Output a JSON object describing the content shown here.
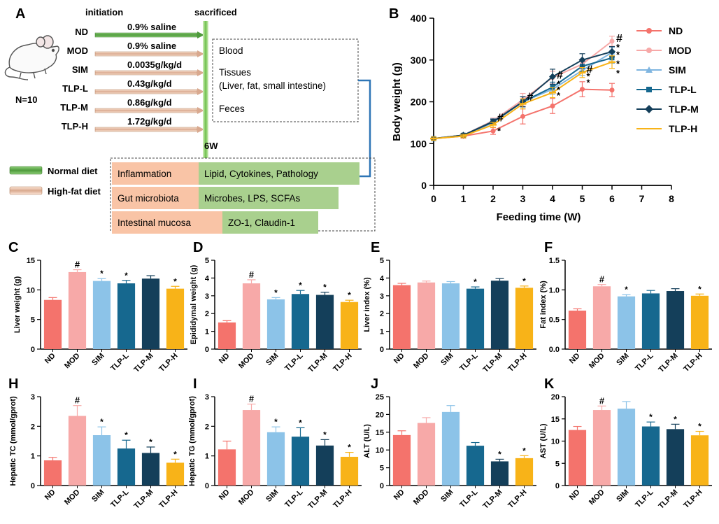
{
  "panel_a": {
    "label": "A",
    "initiation": "initiation",
    "sacrificed": "sacrificed",
    "n_label": "N=10",
    "week_label": "6W",
    "groups": [
      {
        "name": "ND",
        "dose": "0.9% saline",
        "diet": "normal"
      },
      {
        "name": "MOD",
        "dose": "0.9% saline",
        "diet": "high"
      },
      {
        "name": "SIM",
        "dose": "0.0035g/kg/d",
        "diet": "high"
      },
      {
        "name": "TLP-L",
        "dose": "0.43g/kg/d",
        "diet": "high"
      },
      {
        "name": "TLP-M",
        "dose": "0.86g/kg/d",
        "diet": "high"
      },
      {
        "name": "TLP-H",
        "dose": "1.72g/kg/d",
        "diet": "high"
      }
    ],
    "samples": {
      "blood": "Blood",
      "tissues": "Tissues",
      "tissues_detail": "(Liver, fat, small intestine)",
      "feces": "Feces"
    },
    "legend": {
      "normal_diet": "Normal diet",
      "high_fat_diet": "High-fat diet"
    },
    "analyses": [
      {
        "category": "Inflammation",
        "detail": "Lipid, Cytokines, Pathology"
      },
      {
        "category": "Gut microbiota",
        "detail": "Microbes, LPS, SCFAs"
      },
      {
        "category": "Intestinal mucosa",
        "detail": "ZO-1, Claudin-1"
      }
    ],
    "colors": {
      "normal_arrow": "#4f9a3c",
      "hfd_arrow": "#f3c8b0",
      "category_fill": "#f9c4a6",
      "detail_fill": "#a9d08e",
      "bracket": "#2e75b6"
    }
  },
  "chart_data": [
    {
      "id": "B",
      "label": "B",
      "type": "line",
      "xlabel": "Feeding time (W)",
      "ylabel": "Body weight (g)",
      "xlim": [
        0,
        8
      ],
      "ylim": [
        0,
        400
      ],
      "xticks": [
        "0",
        "1",
        "2",
        "3",
        "4",
        "5",
        "6",
        "7",
        "8"
      ],
      "yticks": [
        "0",
        "100",
        "200",
        "300",
        "400"
      ],
      "x": [
        0,
        1,
        2,
        3,
        4,
        5,
        6
      ],
      "series": [
        {
          "name": "ND",
          "color": "#f4736c",
          "marker": "circle",
          "values": [
            112,
            118,
            130,
            165,
            190,
            230,
            228
          ],
          "errors": [
            4,
            5,
            8,
            18,
            18,
            18,
            16
          ]
        },
        {
          "name": "MOD",
          "color": "#f7a9a8",
          "marker": "circle",
          "values": [
            112,
            120,
            155,
            205,
            258,
            290,
            345
          ],
          "errors": [
            4,
            4,
            6,
            15,
            15,
            12,
            12
          ]
        },
        {
          "name": "SIM",
          "color": "#7fb5e0",
          "marker": "triangle",
          "values": [
            112,
            119,
            150,
            200,
            230,
            275,
            318
          ],
          "errors": [
            4,
            4,
            6,
            12,
            12,
            12,
            12
          ]
        },
        {
          "name": "TLP-L",
          "color": "#16688f",
          "marker": "square",
          "values": [
            112,
            120,
            153,
            200,
            235,
            285,
            305
          ],
          "errors": [
            4,
            4,
            6,
            12,
            12,
            12,
            12
          ]
        },
        {
          "name": "TLP-M",
          "color": "#143f5a",
          "marker": "diamond",
          "values": [
            112,
            120,
            152,
            200,
            260,
            300,
            320
          ],
          "errors": [
            4,
            4,
            6,
            12,
            18,
            15,
            12
          ]
        },
        {
          "name": "TLP-H",
          "color": "#f8b318",
          "marker": "line",
          "values": [
            112,
            118,
            145,
            195,
            222,
            270,
            295
          ],
          "errors": [
            4,
            4,
            6,
            12,
            12,
            12,
            15
          ]
        }
      ],
      "annotations": [
        {
          "x": 2,
          "y": 160,
          "text": "#"
        },
        {
          "x": 2,
          "y": 130,
          "text": "*"
        },
        {
          "x": 3,
          "y": 210,
          "text": "#"
        },
        {
          "x": 4,
          "y": 262,
          "text": "#"
        },
        {
          "x": 4,
          "y": 242,
          "text": "*"
        },
        {
          "x": 4,
          "y": 228,
          "text": "*"
        },
        {
          "x": 4,
          "y": 214,
          "text": "*"
        },
        {
          "x": 5,
          "y": 275,
          "text": "#"
        },
        {
          "x": 5,
          "y": 260,
          "text": "*"
        },
        {
          "x": 5,
          "y": 245,
          "text": "*"
        },
        {
          "x": 6,
          "y": 350,
          "text": "#"
        },
        {
          "x": 6,
          "y": 330,
          "text": "*"
        },
        {
          "x": 6,
          "y": 312,
          "text": "*"
        },
        {
          "x": 6,
          "y": 290,
          "text": "*"
        },
        {
          "x": 6,
          "y": 268,
          "text": "*"
        }
      ]
    },
    {
      "id": "C",
      "label": "C",
      "type": "bar",
      "ylabel": "Liver weight (g)",
      "ylim": [
        0,
        15
      ],
      "yticks": [
        "0",
        "5",
        "10",
        "15"
      ],
      "categories": [
        "ND",
        "MOD",
        "SIM",
        "TLP-L",
        "TLP-M",
        "TLP-H"
      ],
      "values": [
        8.3,
        13.0,
        11.5,
        11.1,
        11.9,
        10.2
      ],
      "errors": [
        0.4,
        0.4,
        0.4,
        0.5,
        0.5,
        0.4
      ],
      "marks": [
        "",
        "#",
        "*",
        "*",
        "",
        "*"
      ]
    },
    {
      "id": "D",
      "label": "D",
      "type": "bar",
      "ylabel": "Epididymal weight (g)",
      "ylim": [
        0,
        5
      ],
      "yticks": [
        "0",
        "1",
        "2",
        "3",
        "4",
        "5"
      ],
      "categories": [
        "ND",
        "MOD",
        "SIM",
        "TLP-L",
        "TLP-M",
        "TLP-H"
      ],
      "values": [
        1.5,
        3.7,
        2.8,
        3.1,
        3.05,
        2.65
      ],
      "errors": [
        0.1,
        0.2,
        0.1,
        0.2,
        0.15,
        0.1
      ],
      "marks": [
        "",
        "#",
        "*",
        "*",
        "*",
        "*"
      ]
    },
    {
      "id": "E",
      "label": "E",
      "type": "bar",
      "ylabel": "Liver index (%)",
      "ylim": [
        0,
        5
      ],
      "yticks": [
        "0",
        "1",
        "2",
        "3",
        "4",
        "5"
      ],
      "categories": [
        "ND",
        "MOD",
        "SIM",
        "TLP-L",
        "TLP-M",
        "TLP-H"
      ],
      "values": [
        3.6,
        3.75,
        3.7,
        3.4,
        3.85,
        3.45
      ],
      "errors": [
        0.1,
        0.08,
        0.1,
        0.1,
        0.12,
        0.1
      ],
      "marks": [
        "",
        "",
        "",
        "*",
        "",
        "*"
      ]
    },
    {
      "id": "F",
      "label": "F",
      "type": "bar",
      "ylabel": "Fat index (%)",
      "ylim": [
        0,
        1.5
      ],
      "yticks": [
        "0.0",
        "0.5",
        "1.0",
        "1.5"
      ],
      "categories": [
        "ND",
        "MOD",
        "SIM",
        "TLP-L",
        "TLP-M",
        "TLP-H"
      ],
      "values": [
        0.65,
        1.06,
        0.89,
        0.94,
        0.98,
        0.9
      ],
      "errors": [
        0.03,
        0.03,
        0.03,
        0.05,
        0.04,
        0.03
      ],
      "marks": [
        "",
        "#",
        "*",
        "",
        "",
        "*"
      ]
    },
    {
      "id": "H",
      "label": "H",
      "type": "bar",
      "ylabel": "Hepatic TC (mmol/gprot)",
      "ylim": [
        0,
        3
      ],
      "yticks": [
        "0",
        "1",
        "2",
        "3"
      ],
      "categories": [
        "ND",
        "MOD",
        "SIM",
        "TLP-L",
        "TLP-M",
        "TLP-H"
      ],
      "values": [
        0.85,
        2.35,
        1.7,
        1.25,
        1.1,
        0.77
      ],
      "errors": [
        0.1,
        0.35,
        0.28,
        0.28,
        0.2,
        0.12
      ],
      "marks": [
        "",
        "#",
        "*",
        "*",
        "*",
        "*"
      ]
    },
    {
      "id": "I",
      "label": "I",
      "type": "bar",
      "ylabel": "Hepatic TG (mmol/gprot)",
      "ylim": [
        0,
        3
      ],
      "yticks": [
        "0",
        "1",
        "2",
        "3"
      ],
      "categories": [
        "ND",
        "MOD",
        "SIM",
        "TLP-L",
        "TLP-M",
        "TLP-H"
      ],
      "values": [
        1.22,
        2.55,
        1.8,
        1.65,
        1.35,
        0.97
      ],
      "errors": [
        0.28,
        0.2,
        0.18,
        0.3,
        0.2,
        0.15
      ],
      "marks": [
        "",
        "#",
        "*",
        "*",
        "*",
        "*"
      ]
    },
    {
      "id": "J",
      "label": "J",
      "type": "bar",
      "ylabel": "ALT (U/L)",
      "ylim": [
        0,
        25
      ],
      "yticks": [
        "0",
        "5",
        "10",
        "15",
        "20",
        "25"
      ],
      "categories": [
        "ND",
        "MOD",
        "SIM",
        "TLP-L",
        "TLP-M",
        "TLP-H"
      ],
      "values": [
        14.2,
        17.6,
        20.7,
        11.2,
        6.8,
        7.7
      ],
      "errors": [
        1.2,
        1.5,
        1.8,
        0.9,
        0.6,
        0.7
      ],
      "marks": [
        "",
        "",
        "",
        "",
        "*",
        "*"
      ]
    },
    {
      "id": "K",
      "label": "K",
      "type": "bar",
      "ylabel": "AST (U/L)",
      "ylim": [
        0,
        20
      ],
      "yticks": [
        "0",
        "5",
        "10",
        "15",
        "20"
      ],
      "categories": [
        "ND",
        "MOD",
        "SIM",
        "TLP-L",
        "TLP-M",
        "TLP-H"
      ],
      "values": [
        12.5,
        17.0,
        17.3,
        13.3,
        12.7,
        11.3
      ],
      "errors": [
        0.8,
        0.9,
        1.6,
        1.0,
        1.1,
        0.9
      ],
      "marks": [
        "",
        "#",
        "",
        "*",
        "*",
        "*"
      ]
    }
  ],
  "bar_colors": [
    "#f4736c",
    "#f7a9a8",
    "#8cc3e8",
    "#16688f",
    "#143f5a",
    "#f8b318"
  ]
}
